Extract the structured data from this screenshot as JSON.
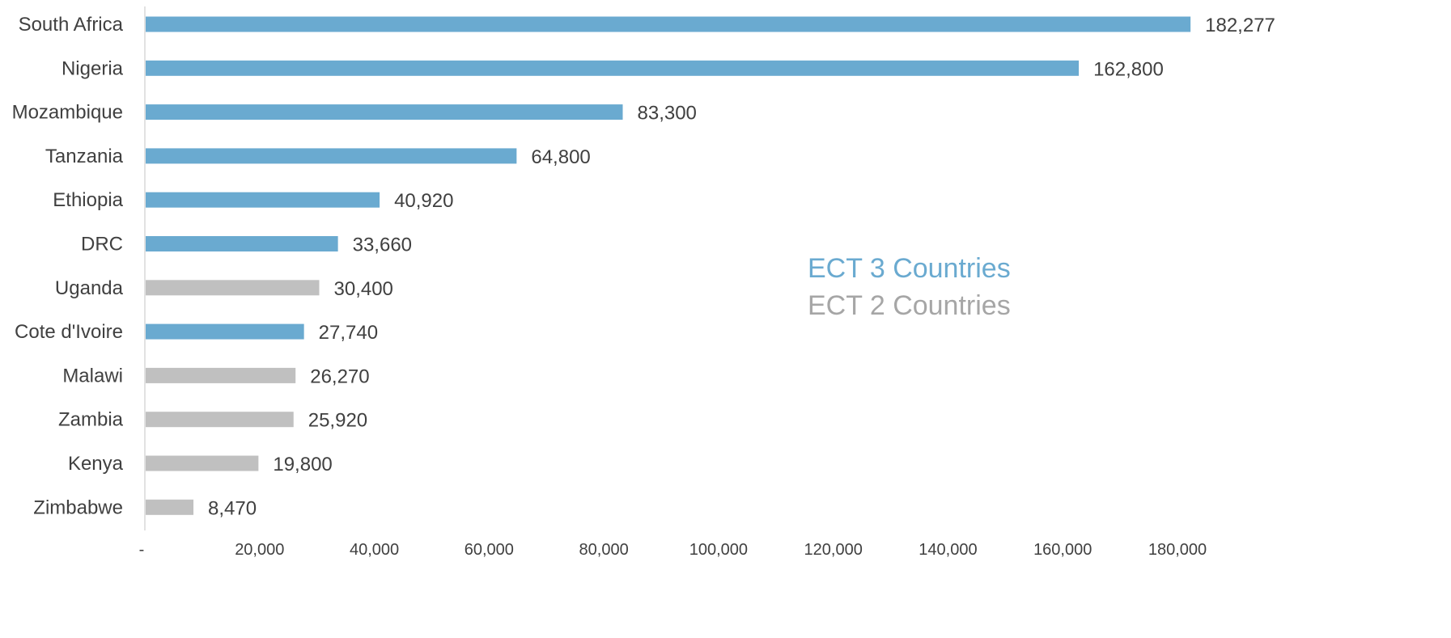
{
  "chart_data": {
    "type": "bar",
    "orientation": "horizontal",
    "categories": [
      "South Africa",
      "Nigeria",
      "Mozambique",
      "Tanzania",
      "Ethiopia",
      "DRC",
      "Uganda",
      "Cote d'Ivoire",
      "Malawi",
      "Zambia",
      "Kenya",
      "Zimbabwe"
    ],
    "values": [
      182277,
      162800,
      83300,
      64800,
      40920,
      33660,
      30400,
      27740,
      26270,
      25920,
      19800,
      8470
    ],
    "value_labels": [
      "182,277",
      "162,800",
      "83,300",
      "64,800",
      "40,920",
      "33,660",
      "30,400",
      "27,740",
      "26,270",
      "25,920",
      "19,800",
      "8,470"
    ],
    "groups": [
      "ECT 3 Countries",
      "ECT 3 Countries",
      "ECT 3 Countries",
      "ECT 3 Countries",
      "ECT 3 Countries",
      "ECT 3 Countries",
      "ECT 2 Countries",
      "ECT 3 Countries",
      "ECT 2 Countries",
      "ECT 2 Countries",
      "ECT 2 Countries",
      "ECT 2 Countries"
    ],
    "legend": [
      {
        "name": "ECT 3 Countries",
        "color": "#6aaad0"
      },
      {
        "name": "ECT 2 Countries",
        "color": "#a6a6a6"
      }
    ],
    "bar_colors": {
      "ECT 3 Countries": "#6aaad0",
      "ECT 2 Countries": "#c0c0c0"
    },
    "xlim": [
      0,
      200000
    ],
    "xticks": [
      0,
      20000,
      40000,
      60000,
      80000,
      100000,
      120000,
      140000,
      160000,
      180000
    ],
    "xtick_labels": [
      "-",
      "20,000",
      "40,000",
      "60,000",
      "80,000",
      "100,000",
      "120,000",
      "140,000",
      "160,000",
      "180,000"
    ],
    "legend_position": "center-right",
    "grid": false,
    "title": "",
    "xlabel": "",
    "ylabel": ""
  }
}
